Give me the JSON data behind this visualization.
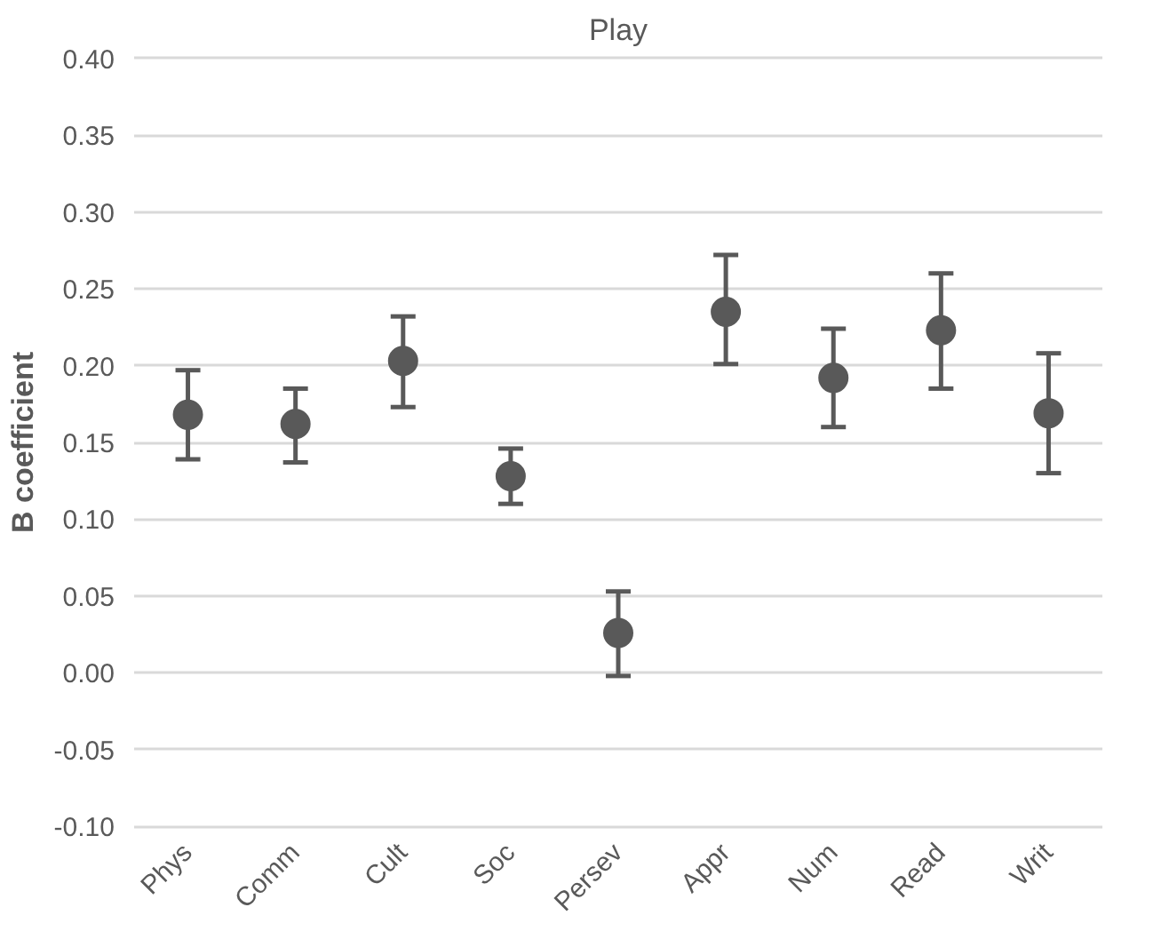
{
  "chart_data": {
    "type": "scatter",
    "title": "Play",
    "ylabel": "B coefficient",
    "categories": [
      "Phys",
      "Comm",
      "Cult",
      "Soc",
      "Persev",
      "Appr",
      "Num",
      "Read",
      "Writ"
    ],
    "series": [
      {
        "color": "#595959",
        "values": [
          0.168,
          0.162,
          0.203,
          0.128,
          0.026,
          0.235,
          0.192,
          0.223,
          0.169
        ],
        "errors": [
          [
            0.139,
            0.197
          ],
          [
            0.137,
            0.185
          ],
          [
            0.173,
            0.232
          ],
          [
            0.11,
            0.146
          ],
          [
            -0.002,
            0.053
          ],
          [
            0.201,
            0.272
          ],
          [
            0.16,
            0.224
          ],
          [
            0.185,
            0.26
          ],
          [
            0.13,
            0.208
          ]
        ]
      }
    ],
    "ylim": [
      -0.1,
      0.4
    ],
    "yticks": [
      {
        "value": -0.1,
        "label": "-0.10"
      },
      {
        "value": -0.05,
        "label": "-0.05"
      },
      {
        "value": 0,
        "label": "0.00"
      },
      {
        "value": 0.05,
        "label": "0.05"
      },
      {
        "value": 0.1,
        "label": "0.10"
      },
      {
        "value": 0.15,
        "label": "0.15"
      },
      {
        "value": 0.2,
        "label": "0.20"
      },
      {
        "value": 0.25,
        "label": "0.25"
      },
      {
        "value": 0.3,
        "label": "0.30"
      },
      {
        "value": 0.35,
        "label": "0.35"
      },
      {
        "value": 0.4,
        "label": "0.40"
      }
    ],
    "grid": "y",
    "marker": "circle"
  }
}
